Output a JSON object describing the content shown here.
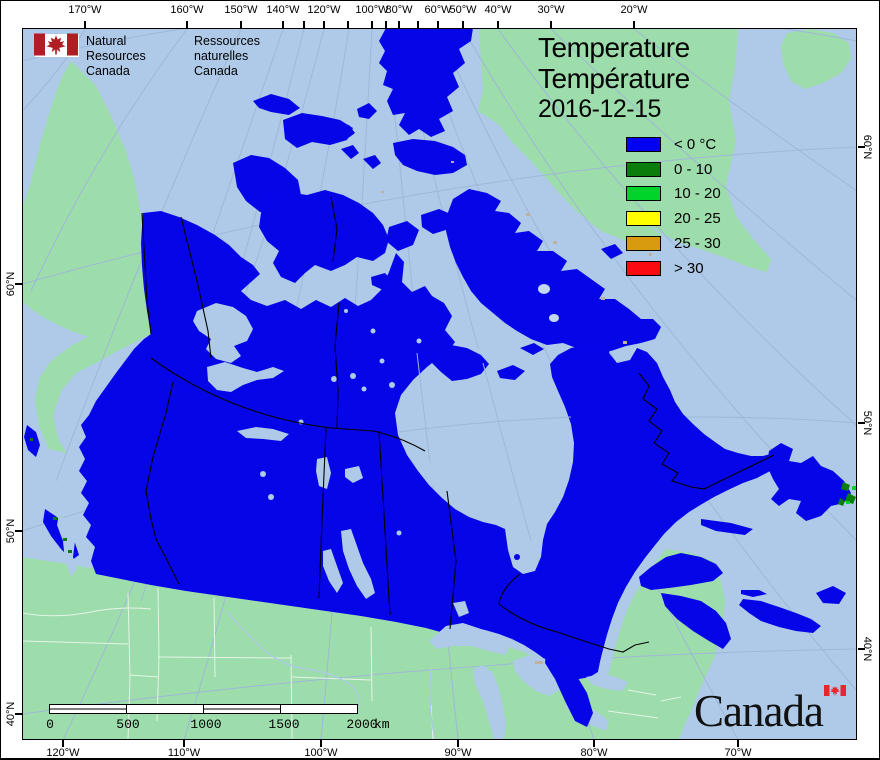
{
  "header": {
    "logo": {
      "en1": "Natural Resources",
      "en2": "Canada",
      "fr1": "Ressources naturelles",
      "fr2": "Canada"
    }
  },
  "title": {
    "line1": "Temperature",
    "line2": "Température",
    "date": "2016-12-15"
  },
  "legend": {
    "items": [
      {
        "label": "< 0 °C",
        "color": "#0202F2"
      },
      {
        "label": "0 - 10",
        "color": "#0A7D0A"
      },
      {
        "label": "10 - 20",
        "color": "#00D42A"
      },
      {
        "label": "20 - 25",
        "color": "#FFFF00"
      },
      {
        "label": "25 - 30",
        "color": "#D89B0F"
      },
      {
        "label": "> 30",
        "color": "#FB0A12"
      }
    ]
  },
  "axes": {
    "top": {
      "labeled": [
        [
          "170°W",
          84
        ],
        [
          "160°W",
          186
        ],
        [
          "150°W",
          240
        ],
        [
          "140°W",
          282
        ],
        [
          "120°W",
          323
        ],
        [
          "100°W",
          371
        ],
        [
          "80°W",
          398
        ],
        [
          "60°W",
          437
        ],
        [
          "50°W",
          462
        ],
        [
          "40°W",
          497
        ],
        [
          "30°W",
          550
        ],
        [
          "20°W",
          633
        ]
      ],
      "unlabeled_ticks": [
        303,
        347,
        385,
        417
      ]
    },
    "bottom": {
      "labeled": [
        [
          "120°W",
          62
        ],
        [
          "110°W",
          183
        ],
        [
          "100°W",
          320
        ],
        [
          "90°W",
          457
        ],
        [
          "80°W",
          593
        ],
        [
          "70°W",
          737
        ]
      ]
    },
    "left": {
      "labeled": [
        [
          "60°N",
          283
        ],
        [
          "50°N",
          530
        ],
        [
          "40°N",
          713
        ]
      ]
    },
    "right": {
      "labeled": [
        [
          "60°N",
          146
        ],
        [
          "50°N",
          422
        ],
        [
          "40°N",
          648
        ]
      ]
    }
  },
  "scale": {
    "values": [
      "0",
      "500",
      "1000",
      "1500",
      "2000"
    ],
    "unit": "km"
  },
  "footer": {
    "wordmark": "Canada"
  },
  "colors": {
    "ocean": "#AECAE8",
    "foreign_land": "#9CDDAB",
    "canada_cold": "#0505E8",
    "graticule": "#9FB7D8",
    "state_line": "#E6F4E6",
    "border_line": "#000000",
    "flag_red": "#B01E24",
    "wordmark_flag_red": "#E8262D",
    "scalebar_fill": "#FFFFFF",
    "speck_green_dark": "#0A7D0A",
    "speck_green_bright": "#00D42A",
    "ice_tan": "#BFB0A0"
  }
}
